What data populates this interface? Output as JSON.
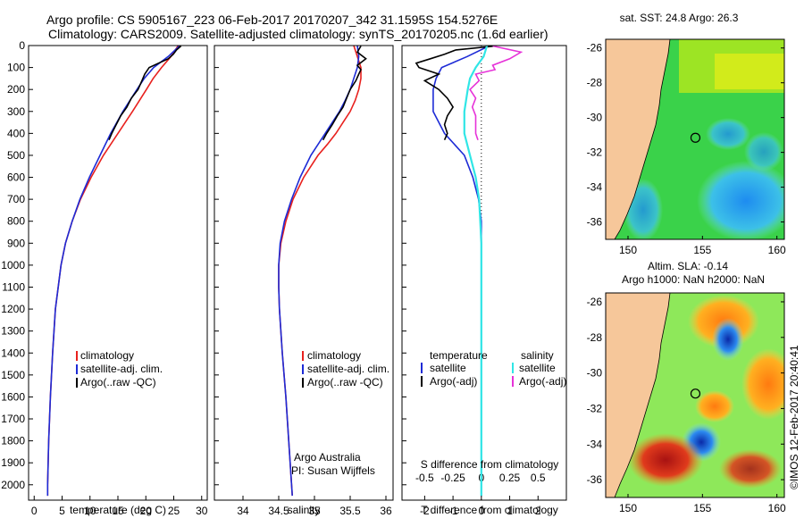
{
  "title_line1": "Argo profile: CS 5905167_223 06-Feb-2017 20170207_342 31.1595S 154.5276E",
  "title_line2": "Climatology: CARS2009. Satellite-adjusted climatology: synTS_20170205.nc (1.6d earlier)",
  "credit": "Argo Australia",
  "pi": "PI: Susan Wijffels",
  "stamp": "©IMOS 12-Feb-2017 20:40:41",
  "colors": {
    "climatology": "#e8211e",
    "satellite": "#1d2bd6",
    "argo": "#000000",
    "satellite_sal_diff": "#30e6e6",
    "argo_sal_diff": "#e632d8",
    "land": "#f6c79a"
  },
  "chart_data": [
    {
      "type": "line",
      "xlabel": "temperature (deg C)",
      "ylabel": "",
      "xlim": [
        -1,
        31
      ],
      "ylim": [
        2070,
        0
      ],
      "xticks": [
        "0",
        "5",
        "10",
        "15",
        "20",
        "25",
        "30"
      ],
      "yticks": [
        "0",
        "100",
        "200",
        "300",
        "400",
        "500",
        "600",
        "700",
        "800",
        "900",
        "1000",
        "1100",
        "1200",
        "1300",
        "1400",
        "1500",
        "1600",
        "1700",
        "1800",
        "1900",
        "2000"
      ],
      "legend": [
        "climatology",
        "satellite-adj. clim.",
        "Argo(..raw -QC)"
      ],
      "series": [
        {
          "name": "climatology",
          "color": "#e8211e",
          "depth": [
            0,
            50,
            100,
            150,
            200,
            300,
            400,
            500,
            600,
            700,
            800,
            900,
            1000,
            1200,
            1400,
            1600,
            1800,
            2000,
            2050
          ],
          "values": [
            25.8,
            24.5,
            22.8,
            21.3,
            20.1,
            17.6,
            15.0,
            12.4,
            10.2,
            8.3,
            6.8,
            5.6,
            4.8,
            3.8,
            3.3,
            2.9,
            2.6,
            2.4,
            2.4
          ]
        },
        {
          "name": "satellite-adj. clim.",
          "color": "#1d2bd6",
          "depth": [
            0,
            50,
            100,
            150,
            200,
            300,
            400,
            500,
            600,
            700,
            800,
            900,
            1000,
            1200,
            1400,
            1600,
            1800,
            2000,
            2050
          ],
          "values": [
            26.1,
            24.0,
            21.4,
            19.7,
            18.4,
            15.9,
            13.7,
            11.8,
            9.9,
            8.2,
            6.8,
            5.6,
            4.8,
            3.8,
            3.3,
            2.9,
            2.6,
            2.4,
            2.4
          ]
        },
        {
          "name": "Argo(..raw -QC)",
          "color": "#000000",
          "depth": [
            2,
            20,
            40,
            60,
            80,
            100,
            130,
            160,
            200,
            240,
            280,
            320,
            360,
            400,
            430
          ],
          "values": [
            26.3,
            25.5,
            24.9,
            24.0,
            22.3,
            20.6,
            19.8,
            19.3,
            18.6,
            17.4,
            16.6,
            15.5,
            14.7,
            13.9,
            13.4
          ]
        }
      ]
    },
    {
      "type": "line",
      "xlabel": "salinity",
      "ylabel": "",
      "xlim": [
        33.6,
        36.1
      ],
      "ylim": [
        2070,
        0
      ],
      "xticks": [
        "34",
        "34.5",
        "35",
        "35.5",
        "36"
      ],
      "legend": [
        "climatology",
        "satellite-adj. clim.",
        "Argo(..raw -QC)"
      ],
      "series": [
        {
          "name": "climatology",
          "color": "#e8211e",
          "depth": [
            0,
            50,
            100,
            150,
            200,
            250,
            300,
            350,
            400,
            450,
            500,
            600,
            700,
            800,
            900,
            1000,
            1100,
            1200,
            1400,
            1600,
            1800,
            2000,
            2050
          ],
          "values": [
            35.55,
            35.6,
            35.65,
            35.65,
            35.62,
            35.57,
            35.5,
            35.4,
            35.3,
            35.18,
            35.05,
            34.85,
            34.7,
            34.6,
            34.53,
            34.5,
            34.5,
            34.51,
            34.55,
            34.6,
            34.64,
            34.68,
            34.69
          ]
        },
        {
          "name": "satellite-adj. clim.",
          "color": "#1d2bd6",
          "depth": [
            0,
            50,
            100,
            150,
            200,
            250,
            300,
            350,
            400,
            450,
            500,
            600,
            700,
            800,
            900,
            1000,
            1100,
            1200,
            1400,
            1600,
            1800,
            2000,
            2050
          ],
          "values": [
            35.6,
            35.62,
            35.6,
            35.55,
            35.5,
            35.43,
            35.35,
            35.25,
            35.15,
            35.05,
            34.95,
            34.8,
            34.68,
            34.58,
            34.52,
            34.5,
            34.5,
            34.51,
            34.55,
            34.6,
            34.64,
            34.68,
            34.69
          ]
        },
        {
          "name": "Argo(..raw -QC)",
          "color": "#000000",
          "depth": [
            2,
            30,
            60,
            90,
            110,
            130,
            160,
            200,
            240,
            280,
            320,
            360,
            400,
            430
          ],
          "values": [
            35.65,
            35.6,
            35.72,
            35.6,
            35.65,
            35.62,
            35.58,
            35.5,
            35.45,
            35.4,
            35.32,
            35.25,
            35.17,
            35.12
          ]
        }
      ]
    },
    {
      "type": "line",
      "xlabel": "T difference from climatology",
      "x2label": "S difference from climatology",
      "xlim": [
        -2.8,
        3.0
      ],
      "x2lim": [
        -0.7,
        0.75
      ],
      "ylim": [
        2070,
        0
      ],
      "xticks": [
        "-2",
        "-1",
        "0",
        "1",
        "2"
      ],
      "x2ticks": [
        "-0.5",
        "-0.25",
        "0",
        "0.25",
        "0.5"
      ],
      "legend": {
        "temperature": [
          "satellite",
          "Argo(-adj)"
        ],
        "salinity": [
          "satellite",
          "Argo(-adj)"
        ]
      },
      "series": [
        {
          "name": "temperature satellite",
          "color": "#1d2bd6",
          "depth": [
            0,
            50,
            100,
            150,
            200,
            300,
            400,
            500,
            600,
            700,
            800,
            900,
            1000,
            1200,
            1400,
            1600,
            1800,
            2000,
            2050
          ],
          "values": [
            0.3,
            -0.5,
            -1.4,
            -1.6,
            -1.7,
            -1.7,
            -1.3,
            -0.6,
            -0.3,
            -0.1,
            0.0,
            0.0,
            0.0,
            0.0,
            0.0,
            0.0,
            0.0,
            0.0,
            0.0
          ]
        },
        {
          "name": "temperature Argo(-adj)",
          "color": "#000000",
          "depth": [
            2,
            20,
            40,
            60,
            80,
            100,
            130,
            160,
            200,
            240,
            280,
            320,
            360,
            400,
            430
          ],
          "values": [
            0.5,
            -0.9,
            -1.3,
            -1.8,
            -2.3,
            -2.2,
            -1.5,
            -2.0,
            -1.5,
            -1.2,
            -1.0,
            -1.2,
            -1.3,
            -1.2,
            -1.3
          ]
        },
        {
          "name": "salinity satellite",
          "color": "#30e6e6",
          "depth": [
            0,
            50,
            100,
            150,
            200,
            300,
            400,
            500,
            600,
            700,
            800,
            900,
            1000,
            1200,
            1400,
            1600,
            1800,
            2000,
            2050
          ],
          "values": [
            0.05,
            0.02,
            -0.05,
            -0.1,
            -0.12,
            -0.15,
            -0.15,
            -0.1,
            -0.05,
            -0.02,
            -0.01,
            0.0,
            0.0,
            0.0,
            0.0,
            0.0,
            0.0,
            0.0,
            0.0
          ]
        },
        {
          "name": "salinity Argo(-adj)",
          "color": "#e632d8",
          "depth": [
            2,
            30,
            60,
            90,
            110,
            130,
            160,
            200,
            240,
            280,
            320,
            360,
            400,
            430
          ],
          "values": [
            0.1,
            0.35,
            0.25,
            0.1,
            0.12,
            -0.05,
            -0.02,
            -0.1,
            -0.05,
            -0.08,
            -0.05,
            -0.05,
            -0.05,
            -0.03
          ]
        }
      ]
    },
    {
      "type": "heatmap",
      "title": "sat. SST: 24.8 Argo: 26.3",
      "xlim": [
        148.5,
        160.5
      ],
      "ylim": [
        -37,
        -25.5
      ],
      "xticks": [
        "150",
        "155",
        "160"
      ],
      "yticks": [
        "-26",
        "-28",
        "-30",
        "-32",
        "-34",
        "-36"
      ],
      "marker": {
        "lon": 154.5276,
        "lat": -31.1595
      }
    },
    {
      "type": "heatmap",
      "title": "Altim. SLA: -0.14",
      "subtitle": "Argo h1000: NaN h2000: NaN",
      "xlim": [
        148.5,
        160.5
      ],
      "ylim": [
        -37,
        -25.5
      ],
      "xticks": [
        "150",
        "155",
        "160"
      ],
      "yticks": [
        "-26",
        "-28",
        "-30",
        "-32",
        "-34",
        "-36"
      ],
      "marker": {
        "lon": 154.5276,
        "lat": -31.1595
      }
    }
  ]
}
